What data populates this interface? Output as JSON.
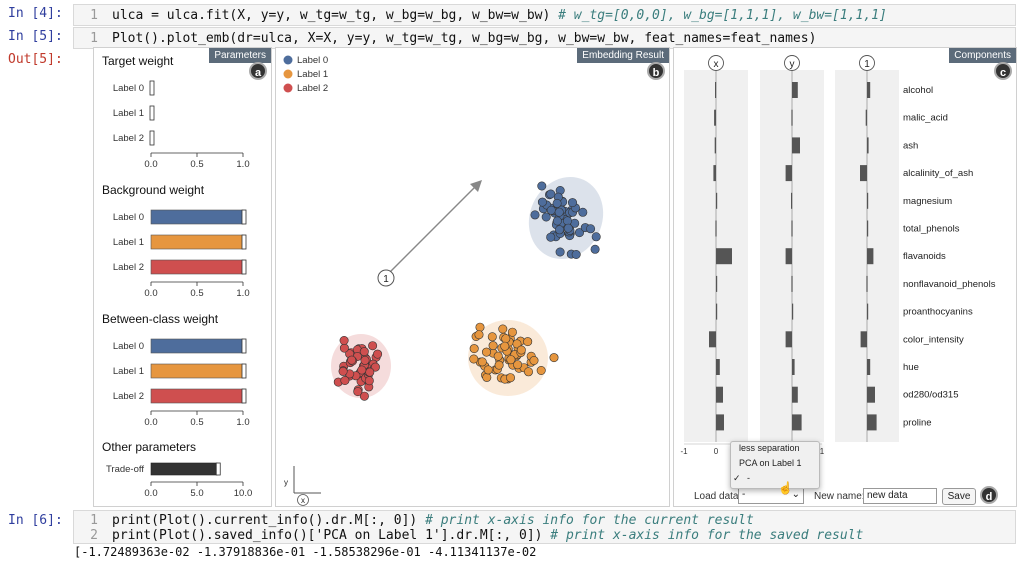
{
  "cells": {
    "in4": {
      "prompt": "In [4]:",
      "line_no": "1",
      "code_a": "ulca = ulca.fit(X, y=y, w_tg=w_tg, w_bg=w_bg, w_bw=w_bw) ",
      "comment": "# w_tg=[0,0,0], w_bg=[1,1,1], w_bw=[1,1,1]"
    },
    "in5": {
      "prompt": "In [5]:",
      "line_no": "1",
      "code": "Plot().plot_emb(dr=ulca, X=X, y=y, w_tg=w_tg, w_bg=w_bg, w_bw=w_bw, feat_names=feat_names)"
    },
    "out5": {
      "prompt": "Out[5]:"
    },
    "in6": {
      "prompt": "In [6]:",
      "line1_no": "1",
      "line1_code": "print(Plot().current_info().dr.M[:, 0]) ",
      "line1_comment": "# print x-axis info for the current result",
      "line2_no": "2",
      "line2_code": "print(Plot().saved_info()['PCA on Label 1'].dr.M[:, 0]) ",
      "line2_comment": "# print x-axis info for the saved result",
      "output": "[-1.72489363e-02 -1.37918836e-01 -1.58538296e-01 -4.11341137e-02"
    }
  },
  "parameters": {
    "title": "Parameters",
    "badge": "a",
    "target": {
      "title": "Target weight",
      "labels": [
        "Label 0",
        "Label 1",
        "Label 2"
      ],
      "values": [
        0,
        0,
        0
      ]
    },
    "background": {
      "title": "Background weight",
      "labels": [
        "Label 0",
        "Label 1",
        "Label 2"
      ],
      "values": [
        1,
        1,
        1
      ]
    },
    "between": {
      "title": "Between-class weight",
      "labels": [
        "Label 0",
        "Label 1",
        "Label 2"
      ],
      "values": [
        1,
        1,
        1
      ]
    },
    "other": {
      "title": "Other parameters",
      "labels": [
        "Trade-off"
      ],
      "values": [
        7.2
      ],
      "ticks": [
        "0.0",
        "5.0",
        "10.0"
      ]
    },
    "ticks": [
      "0.0",
      "0.5",
      "1.0"
    ],
    "colors": {
      "label0": "#4e6d9c",
      "label1": "#e6963f",
      "label2": "#cf4f4f",
      "tradeoff": "#333333"
    }
  },
  "embedding": {
    "title": "Embedding Result",
    "badge": "b",
    "legend": [
      "Label 0",
      "Label 1",
      "Label 2"
    ],
    "vector_label": "1",
    "axis_x": "x",
    "axis_y": "y"
  },
  "components": {
    "title": "Components",
    "badge": "c",
    "columns": [
      "x",
      "y",
      "1"
    ],
    "features": [
      "alcohol",
      "malic_acid",
      "ash",
      "alcalinity_of_ash",
      "magnesium",
      "total_phenols",
      "flavanoids",
      "nonflavanoid_phenols",
      "proanthocyanins",
      "color_intensity",
      "hue",
      "od280/od315",
      "proline"
    ],
    "x_values": [
      -0.03,
      -0.06,
      -0.04,
      -0.08,
      0.0,
      -0.02,
      0.5,
      0.01,
      0.02,
      -0.22,
      0.12,
      0.22,
      0.25
    ],
    "y_values": [
      0.18,
      -0.02,
      0.25,
      -0.2,
      -0.03,
      -0.02,
      -0.2,
      -0.02,
      0.02,
      -0.2,
      0.08,
      0.18,
      0.3
    ],
    "one_values": [
      0.1,
      -0.04,
      0.05,
      -0.22,
      0.0,
      0.0,
      0.2,
      -0.02,
      0.03,
      -0.2,
      0.1,
      0.25,
      0.3
    ],
    "tick_min": "-1",
    "tick_mid": "0",
    "tick_max": "1"
  },
  "controls": {
    "badge": "d",
    "load_label": "Load data",
    "load_value": "-",
    "menu_items": [
      "less separation",
      "PCA on Label 1",
      "-"
    ],
    "checked_item": "✓",
    "name_label": "New name:",
    "name_value": "new data",
    "save_label": "Save"
  }
}
